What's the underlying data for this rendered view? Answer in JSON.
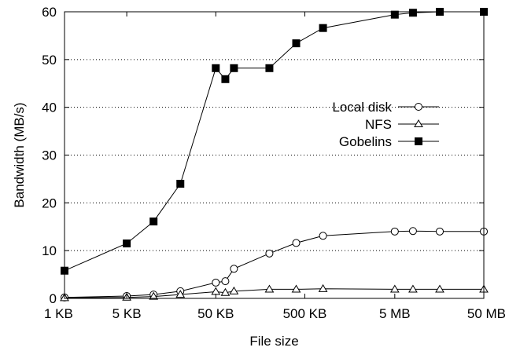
{
  "chart_data": {
    "type": "line",
    "xlabel": "File size",
    "ylabel": "Bandwidth (MB/s)",
    "x_scale": "log",
    "x_unit": "KB",
    "xlim": [
      1,
      51200
    ],
    "ylim": [
      0,
      60
    ],
    "x_ticks": [
      {
        "value": 1,
        "label": "1 KB"
      },
      {
        "value": 5,
        "label": "5 KB"
      },
      {
        "value": 50,
        "label": "50 KB"
      },
      {
        "value": 500,
        "label": "500 KB"
      },
      {
        "value": 5120,
        "label": "5 MB"
      },
      {
        "value": 51200,
        "label": "50 MB"
      }
    ],
    "y_ticks": [
      0,
      10,
      20,
      30,
      40,
      50,
      60
    ],
    "grid": "horizontal dotted",
    "legend_position": "right-middle",
    "series": [
      {
        "name": "Local disk",
        "marker": "open-circle",
        "points": [
          [
            1,
            0.2
          ],
          [
            5,
            0.5
          ],
          [
            10,
            0.8
          ],
          [
            20,
            1.5
          ],
          [
            50,
            3.3
          ],
          [
            64,
            3.6
          ],
          [
            80,
            6.2
          ],
          [
            200,
            9.4
          ],
          [
            400,
            11.6
          ],
          [
            800,
            13.1
          ],
          [
            5120,
            14.0
          ],
          [
            8192,
            14.1
          ],
          [
            16384,
            14.0
          ],
          [
            51200,
            14.0
          ]
        ]
      },
      {
        "name": "NFS",
        "marker": "open-triangle",
        "points": [
          [
            1,
            0.1
          ],
          [
            5,
            0.2
          ],
          [
            10,
            0.4
          ],
          [
            20,
            0.8
          ],
          [
            50,
            1.4
          ],
          [
            64,
            1.2
          ],
          [
            80,
            1.5
          ],
          [
            200,
            1.9
          ],
          [
            400,
            1.9
          ],
          [
            800,
            2.0
          ],
          [
            5120,
            1.9
          ],
          [
            8192,
            1.9
          ],
          [
            16384,
            1.9
          ],
          [
            51200,
            1.9
          ]
        ]
      },
      {
        "name": "Gobelins",
        "marker": "filled-square",
        "points": [
          [
            1,
            5.8
          ],
          [
            5,
            11.5
          ],
          [
            10,
            16.1
          ],
          [
            20,
            24.0
          ],
          [
            50,
            48.2
          ],
          [
            64,
            45.9
          ],
          [
            80,
            48.2
          ],
          [
            200,
            48.2
          ],
          [
            400,
            53.4
          ],
          [
            800,
            56.6
          ],
          [
            5120,
            59.4
          ],
          [
            8192,
            59.8
          ],
          [
            16384,
            60.0
          ],
          [
            51200,
            60.0
          ]
        ]
      }
    ]
  }
}
